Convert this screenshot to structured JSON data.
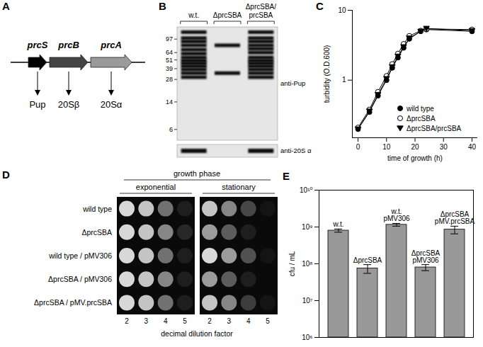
{
  "panels": {
    "A": {
      "panel": "A",
      "genes": [
        {
          "name": "prcS",
          "product": "Pup"
        },
        {
          "name": "prcB",
          "product": "20Sβ"
        },
        {
          "name": "prcA",
          "product": "20Sα"
        }
      ]
    },
    "B": {
      "panel": "B",
      "markers": [
        97,
        64,
        51,
        39,
        28,
        14,
        6
      ],
      "blots": [
        "anti-Pup",
        "anti-20S α"
      ],
      "lanes": [
        {
          "name": "w.t.",
          "bands": [
            120,
            100,
            90,
            80,
            70,
            62,
            55,
            50,
            46,
            42,
            38,
            34,
            30
          ],
          "alpha": true
        },
        {
          "name": "ΔprcSBA",
          "bands": [
            80,
            34
          ],
          "alpha": false
        },
        {
          "name": "ΔprcSBA/prcSBA",
          "bands": [
            120,
            100,
            90,
            80,
            72,
            64,
            55,
            50,
            46,
            42,
            38,
            34,
            30
          ],
          "alpha": true
        }
      ]
    },
    "D": {
      "panel": "D",
      "title": "growth phase",
      "phases": [
        "exponential",
        "stationary"
      ],
      "dilutions": [
        2,
        3,
        4,
        5
      ],
      "x_label": "decimal dilution factor",
      "strains": [
        {
          "name": "wild type",
          "exponential": [
            1,
            0.9,
            0.5,
            0.1
          ],
          "stationary": [
            0.9,
            0.6,
            0.3,
            0.05
          ]
        },
        {
          "name": "ΔprcSBA",
          "exponential": [
            1,
            0.9,
            0.6,
            0.15
          ],
          "stationary": [
            0.7,
            0.4,
            0.1,
            0
          ]
        },
        {
          "name": "wild type / pMV306",
          "exponential": [
            1,
            0.9,
            0.5,
            0.1
          ],
          "stationary": [
            1,
            0.7,
            0.35,
            0.05
          ]
        },
        {
          "name": "ΔprcSBA / pMV306",
          "exponential": [
            1,
            0.9,
            0.6,
            0.1
          ],
          "stationary": [
            0.7,
            0.4,
            0.1,
            0
          ]
        },
        {
          "name": "ΔprcSBA / pMV.prcSBA",
          "exponential": [
            1,
            0.9,
            0.5,
            0.1
          ],
          "stationary": [
            0.9,
            0.6,
            0.25,
            0.05
          ]
        }
      ]
    }
  },
  "chart_data": [
    {
      "panel": "C",
      "type": "line",
      "x_label": "time of growth (h)",
      "y_label": "turbidity (O.D.600)",
      "x": [
        0,
        4,
        7,
        10,
        12,
        14,
        16,
        18,
        22,
        24,
        40
      ],
      "series": [
        {
          "name": "wild type",
          "color": "#000000",
          "marker": "circle",
          "values": [
            0.2,
            0.35,
            0.6,
            1.0,
            1.5,
            2.1,
            2.9,
            3.9,
            5.0,
            5.3,
            5.0
          ]
        },
        {
          "name": "ΔprcSBA",
          "color": "#000000",
          "marker": "circle-open",
          "values": [
            0.21,
            0.38,
            0.68,
            1.15,
            1.7,
            2.4,
            3.3,
            4.3,
            5.1,
            5.4,
            5.3
          ]
        },
        {
          "name": "ΔprcSBA/prcSBA",
          "color": "#000000",
          "marker": "triangle-down",
          "values": [
            0.2,
            0.36,
            0.62,
            1.05,
            1.55,
            2.2,
            3.0,
            4.0,
            5.0,
            5.5,
            5.1
          ]
        }
      ],
      "xlim": [
        -2,
        42
      ],
      "xticks": [
        0,
        10,
        20,
        30,
        40
      ],
      "ylim": [
        0.15,
        10
      ],
      "yticks": [
        1,
        10
      ],
      "log": "y",
      "grid": false,
      "legend": "lower right"
    },
    {
      "panel": "E",
      "type": "bar",
      "y_label": "cfu / mL",
      "categories": [
        "w.t.",
        "ΔprcSBA",
        "w.t.\npMV306",
        "ΔprcSBA\npMV306",
        "ΔprcSBA\npMV.prcSBA"
      ],
      "values": [
        800000000,
        75000000,
        1150000000,
        80000000,
        850000000
      ],
      "errors": [
        80000000,
        20000000,
        100000000,
        15000000,
        200000000
      ],
      "color": "#999999",
      "ylim": [
        1000000,
        10000000000
      ],
      "yticks": [
        {
          "value": 1000000,
          "label": "10⁶"
        },
        {
          "value": 10000000,
          "label": "10⁷"
        },
        {
          "value": 100000000,
          "label": "10⁸"
        },
        {
          "value": 1000000000,
          "label": "10⁹"
        },
        {
          "value": 10000000000,
          "label": "10¹⁰"
        }
      ],
      "log": "y",
      "grid": false
    }
  ]
}
